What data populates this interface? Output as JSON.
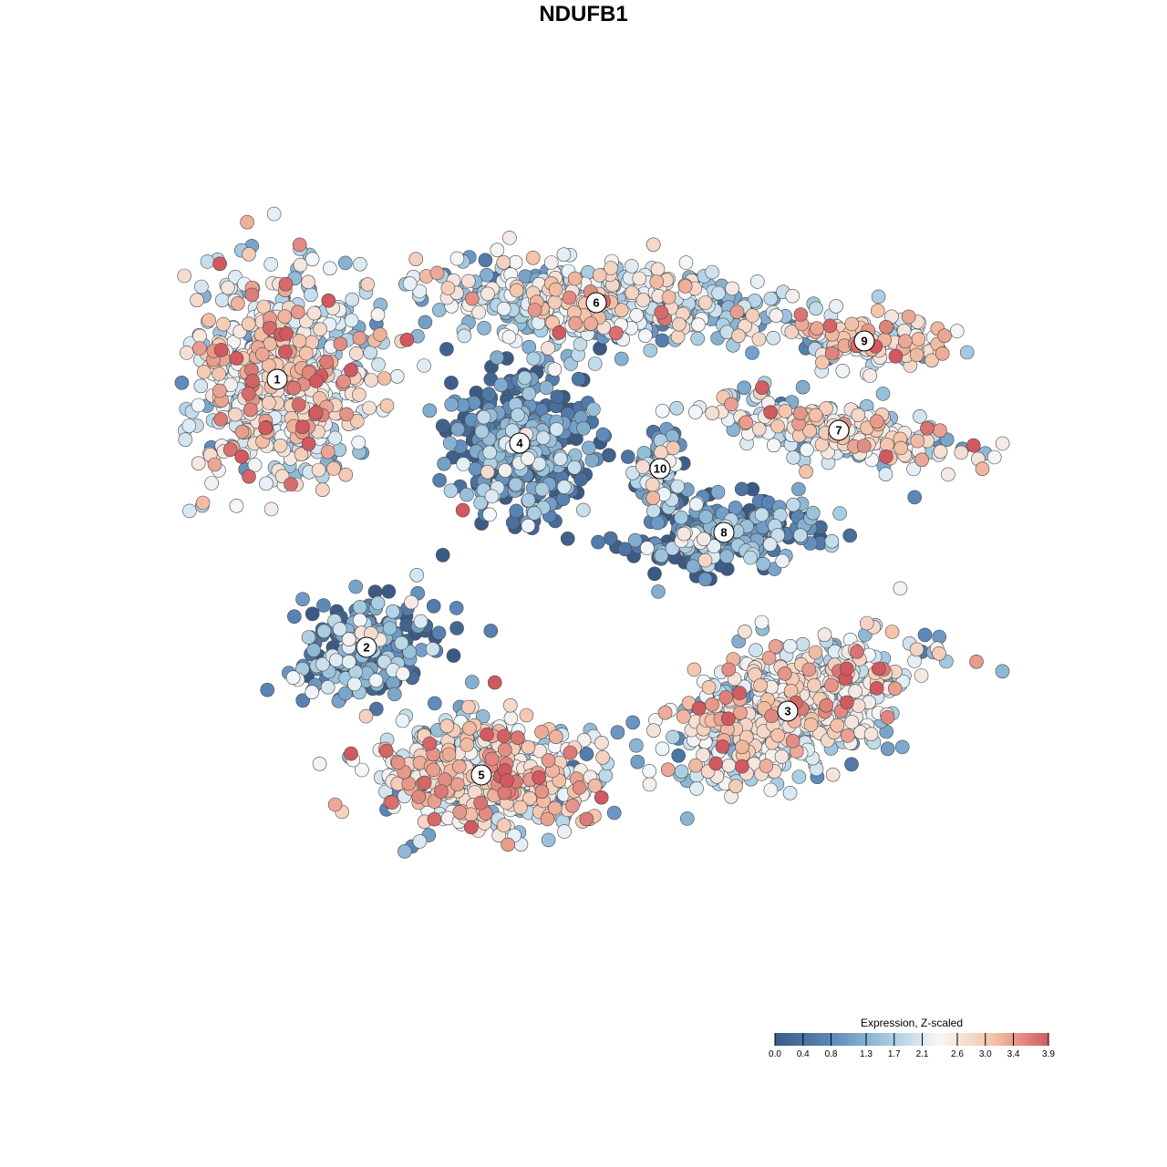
{
  "chart_data": {
    "type": "scatter",
    "title": "NDUFB1",
    "xlabel": "",
    "ylabel": "",
    "colormap": {
      "stops": [
        "#3b5b85",
        "#5a87b8",
        "#9ec6de",
        "#f4f8fb",
        "#f4c2a8",
        "#d1595f"
      ],
      "min": 0.0,
      "max": 3.9
    },
    "legend": {
      "title": "Expression, Z-scaled",
      "ticks": [
        0.0,
        0.4,
        0.8,
        1.3,
        1.7,
        2.1,
        2.6,
        3.0,
        3.4,
        3.9
      ],
      "tick_labels": [
        "0.0",
        "0.4",
        "0.8",
        "1.3",
        "1.7",
        "2.1",
        "2.6",
        "3.0",
        "3.4",
        "3.9"
      ],
      "placement": "bottom-right"
    },
    "clusters": [
      {
        "id": "1",
        "x": -24,
        "y": 14,
        "mean_expr": 2.3
      },
      {
        "id": "2",
        "x": -17,
        "y": -7,
        "mean_expr": 0.9
      },
      {
        "id": "3",
        "x": 16,
        "y": -12,
        "mean_expr": 2.1
      },
      {
        "id": "4",
        "x": -5,
        "y": 9,
        "mean_expr": 0.7
      },
      {
        "id": "5",
        "x": -8,
        "y": -17,
        "mean_expr": 2.4
      },
      {
        "id": "6",
        "x": 1,
        "y": 20,
        "mean_expr": 1.9
      },
      {
        "id": "7",
        "x": 20,
        "y": 10,
        "mean_expr": 2.2
      },
      {
        "id": "8",
        "x": 11,
        "y": 2,
        "mean_expr": 0.8
      },
      {
        "id": "9",
        "x": 22,
        "y": 17,
        "mean_expr": 2.3
      },
      {
        "id": "10",
        "x": 6,
        "y": 7,
        "mean_expr": 1.3
      }
    ]
  }
}
